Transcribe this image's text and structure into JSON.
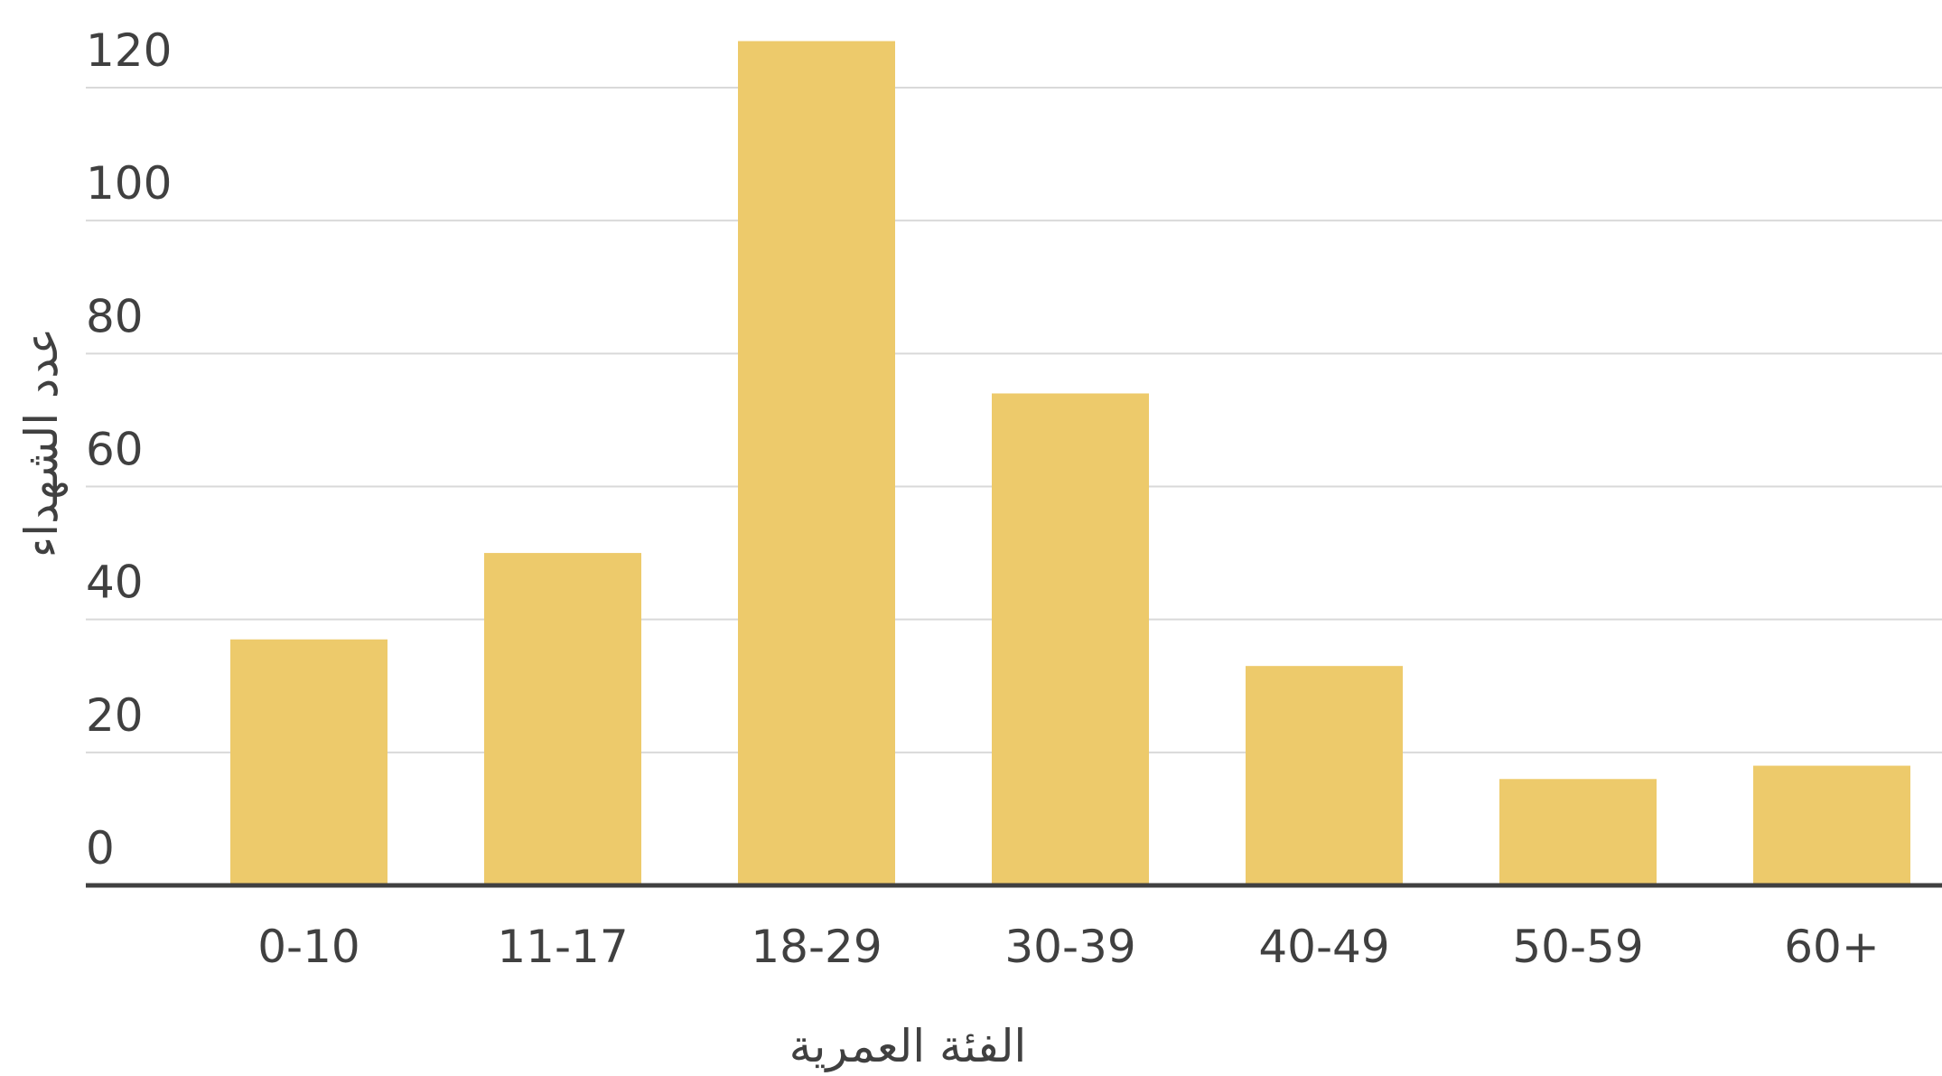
{
  "chart_data": {
    "type": "bar",
    "title": "",
    "xlabel": "الفئة العمرية",
    "ylabel": "عدد الشهداء",
    "categories": [
      "0-10",
      "11-17",
      "18-29",
      "30-39",
      "40-49",
      "50-59",
      "60+"
    ],
    "values": [
      37,
      50,
      127,
      74,
      33,
      16,
      18
    ],
    "ylim": [
      0,
      120
    ],
    "yticks": [
      "0",
      "20",
      "40",
      "60",
      "80",
      "100",
      "120"
    ],
    "grid": true,
    "legend": "none",
    "colors": {
      "bar": "#EDCA6B",
      "grid": "#d9d9d9",
      "axis": "#404040",
      "text": "#404040"
    }
  }
}
